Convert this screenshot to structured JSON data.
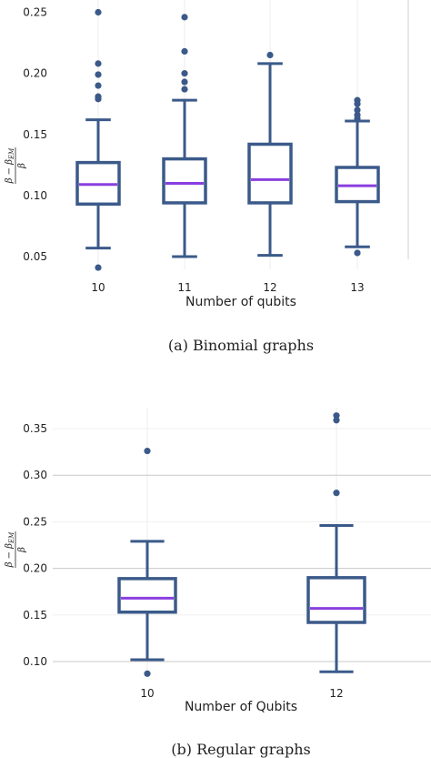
{
  "chart_data": [
    {
      "type": "box",
      "ylabel": "(β − β_EM)/β",
      "ylabel_num": "β − β",
      "ylabel_sub": "EM",
      "ylabel_den": "β",
      "xlabel": "Number of qubits",
      "caption": "(a) Binomial graphs",
      "ylim": [
        0.035,
        0.26
      ],
      "yticks": [
        "0.05",
        "0.10",
        "0.15",
        "0.20",
        "0.25"
      ],
      "grid": false,
      "colors": {
        "box": "#3b5a8a",
        "median": "#8a3fe0"
      },
      "categories": [
        "10",
        "11",
        "12",
        "13"
      ],
      "boxes": [
        {
          "label": "10",
          "whisker_low": 0.057,
          "q1": 0.093,
          "median": 0.109,
          "q3": 0.127,
          "whisker_high": 0.162,
          "outliers": [
            0.041,
            0.179,
            0.181,
            0.19,
            0.199,
            0.208,
            0.25
          ]
        },
        {
          "label": "11",
          "whisker_low": 0.05,
          "q1": 0.094,
          "median": 0.11,
          "q3": 0.13,
          "whisker_high": 0.178,
          "outliers": [
            0.187,
            0.193,
            0.2,
            0.218,
            0.246
          ]
        },
        {
          "label": "12",
          "whisker_low": 0.051,
          "q1": 0.094,
          "median": 0.113,
          "q3": 0.142,
          "whisker_high": 0.208,
          "outliers": [
            0.215
          ]
        },
        {
          "label": "13",
          "whisker_low": 0.058,
          "q1": 0.095,
          "median": 0.108,
          "q3": 0.123,
          "whisker_high": 0.161,
          "outliers": [
            0.053,
            0.163,
            0.166,
            0.17,
            0.175,
            0.178
          ]
        }
      ]
    },
    {
      "type": "box",
      "ylabel": "(β − β_EM)/β",
      "ylabel_num": "β − β",
      "ylabel_sub": "EM",
      "ylabel_den": "β",
      "xlabel": "Number of Qubits",
      "caption": "(b) Regular graphs",
      "ylim": [
        0.085,
        0.38
      ],
      "yticks": [
        "0.10",
        "0.15",
        "0.20",
        "0.25",
        "0.30",
        "0.35"
      ],
      "grid": true,
      "colors": {
        "box": "#3b5a8a",
        "median": "#8a3fe0"
      },
      "categories": [
        "10",
        "12"
      ],
      "boxes": [
        {
          "label": "10",
          "whisker_low": 0.102,
          "q1": 0.153,
          "median": 0.168,
          "q3": 0.189,
          "whisker_high": 0.229,
          "outliers": [
            0.087,
            0.326
          ]
        },
        {
          "label": "12",
          "whisker_low": 0.089,
          "q1": 0.142,
          "median": 0.157,
          "q3": 0.19,
          "whisker_high": 0.246,
          "outliers": [
            0.281,
            0.359,
            0.364
          ]
        }
      ]
    }
  ]
}
